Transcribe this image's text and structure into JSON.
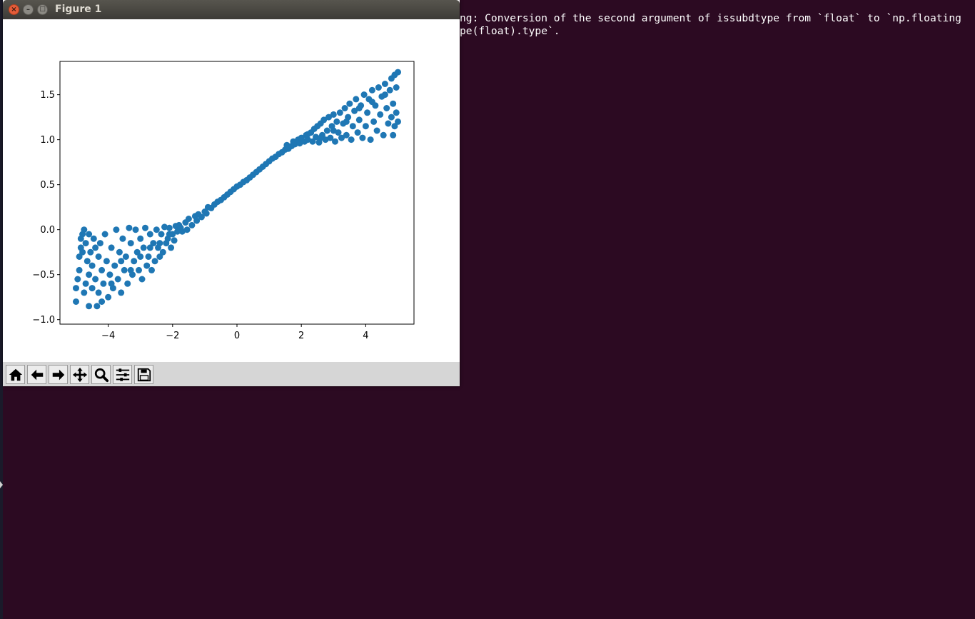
{
  "window": {
    "title": "Figure 1"
  },
  "terminal": {
    "lines": [
      "ng: Conversion of the second argument of issubdtype from `float` to `np.floating",
      "pe(float).type`."
    ]
  },
  "toolbar": {
    "buttons": [
      {
        "name": "home-button",
        "icon": "home-icon"
      },
      {
        "name": "back-button",
        "icon": "arrow-left-icon"
      },
      {
        "name": "forward-button",
        "icon": "arrow-right-icon"
      },
      {
        "name": "pan-button",
        "icon": "move-icon"
      },
      {
        "name": "zoom-button",
        "icon": "magnifier-icon"
      },
      {
        "name": "configure-subplots-button",
        "icon": "sliders-icon"
      },
      {
        "name": "save-button",
        "icon": "floppy-icon"
      }
    ]
  },
  "chart_data": {
    "type": "scatter",
    "xlim": [
      -5.5,
      5.5
    ],
    "ylim": [
      -1.05,
      1.87
    ],
    "xticks": [
      -4,
      -2,
      0,
      2,
      4
    ],
    "xtick_labels": [
      "−4",
      "−2",
      "0",
      "2",
      "4"
    ],
    "yticks": [
      -1.0,
      -0.5,
      0.0,
      0.5,
      1.0,
      1.5
    ],
    "ytick_labels": [
      "−1.0",
      "−0.5",
      "0.0",
      "0.5",
      "1.0",
      "1.5"
    ],
    "marker_color": "#1f77b4",
    "grid": false,
    "legend": "none",
    "points": [
      [
        -5.0,
        -0.8
      ],
      [
        -5.0,
        -0.65
      ],
      [
        -4.95,
        -0.55
      ],
      [
        -4.9,
        -0.45
      ],
      [
        -4.9,
        -0.3
      ],
      [
        -4.85,
        -0.1
      ],
      [
        -4.85,
        -0.2
      ],
      [
        -4.8,
        -0.05
      ],
      [
        -4.75,
        0.0
      ],
      [
        -4.75,
        -0.7
      ],
      [
        -4.7,
        -0.6
      ],
      [
        -4.7,
        -0.15
      ],
      [
        -4.65,
        -0.35
      ],
      [
        -4.6,
        -0.85
      ],
      [
        -4.6,
        -0.5
      ],
      [
        -4.55,
        -0.25
      ],
      [
        -4.5,
        -0.65
      ],
      [
        -4.5,
        -0.4
      ],
      [
        -4.45,
        -0.1
      ],
      [
        -4.4,
        -0.55
      ],
      [
        -4.35,
        -0.85
      ],
      [
        -4.3,
        -0.3
      ],
      [
        -4.3,
        -0.7
      ],
      [
        -4.25,
        -0.15
      ],
      [
        -4.2,
        -0.45
      ],
      [
        -4.15,
        -0.6
      ],
      [
        -4.1,
        -0.05
      ],
      [
        -4.05,
        -0.35
      ],
      [
        -4.0,
        -0.75
      ],
      [
        -3.95,
        -0.5
      ],
      [
        -3.9,
        -0.2
      ],
      [
        -3.85,
        -0.65
      ],
      [
        -3.8,
        -0.4
      ],
      [
        -3.75,
        0.0
      ],
      [
        -3.7,
        -0.55
      ],
      [
        -3.65,
        -0.25
      ],
      [
        -3.6,
        -0.7
      ],
      [
        -3.55,
        -0.1
      ],
      [
        -3.5,
        -0.45
      ],
      [
        -3.45,
        -0.3
      ],
      [
        -3.4,
        -0.6
      ],
      [
        -3.35,
        0.02
      ],
      [
        -3.3,
        -0.15
      ],
      [
        -3.25,
        -0.5
      ],
      [
        -3.2,
        -0.35
      ],
      [
        -3.15,
        0.0
      ],
      [
        -3.1,
        -0.25
      ],
      [
        -3.05,
        -0.45
      ],
      [
        -3.0,
        -0.1
      ],
      [
        -2.95,
        -0.55
      ],
      [
        -2.9,
        -0.2
      ],
      [
        -2.85,
        0.02
      ],
      [
        -2.8,
        -0.4
      ],
      [
        -2.75,
        -0.3
      ],
      [
        -2.7,
        -0.05
      ],
      [
        -2.65,
        -0.45
      ],
      [
        -2.6,
        -0.15
      ],
      [
        -2.55,
        -0.35
      ],
      [
        -2.5,
        0.0
      ],
      [
        -2.45,
        -0.2
      ],
      [
        -2.4,
        -0.3
      ],
      [
        -2.35,
        -0.05
      ],
      [
        -2.3,
        -0.25
      ],
      [
        -2.25,
        0.03
      ],
      [
        -2.2,
        -0.15
      ],
      [
        -2.15,
        -0.1
      ],
      [
        -2.1,
        0.02
      ],
      [
        -2.05,
        -0.2
      ],
      [
        -2.0,
        -0.05
      ],
      [
        -1.95,
        -0.12
      ],
      [
        -1.9,
        0.04
      ],
      [
        -1.85,
        -0.02
      ],
      [
        -1.8,
        0.05
      ],
      [
        -1.7,
        -0.02
      ],
      [
        -1.6,
        0.08
      ],
      [
        -1.55,
        0.0
      ],
      [
        -1.5,
        0.12
      ],
      [
        -1.4,
        0.05
      ],
      [
        -1.3,
        0.15
      ],
      [
        -1.25,
        0.1
      ],
      [
        -1.2,
        0.17
      ],
      [
        -1.1,
        0.14
      ],
      [
        -1.0,
        0.2
      ],
      [
        -0.95,
        0.18
      ],
      [
        -0.9,
        0.25
      ],
      [
        -0.8,
        0.24
      ],
      [
        -0.7,
        0.28
      ],
      [
        -0.6,
        0.31
      ],
      [
        -0.5,
        0.33
      ],
      [
        -0.4,
        0.36
      ],
      [
        -0.3,
        0.39
      ],
      [
        -0.2,
        0.42
      ],
      [
        -0.1,
        0.45
      ],
      [
        0.0,
        0.48
      ],
      [
        0.1,
        0.5
      ],
      [
        0.2,
        0.53
      ],
      [
        0.3,
        0.55
      ],
      [
        0.4,
        0.58
      ],
      [
        0.5,
        0.61
      ],
      [
        0.6,
        0.64
      ],
      [
        0.7,
        0.67
      ],
      [
        0.8,
        0.7
      ],
      [
        0.9,
        0.73
      ],
      [
        1.0,
        0.76
      ],
      [
        1.1,
        0.79
      ],
      [
        1.2,
        0.81
      ],
      [
        1.3,
        0.84
      ],
      [
        1.4,
        0.86
      ],
      [
        1.5,
        0.89
      ],
      [
        1.55,
        0.94
      ],
      [
        1.6,
        0.9
      ],
      [
        1.7,
        0.93
      ],
      [
        1.75,
        0.98
      ],
      [
        1.8,
        0.95
      ],
      [
        1.9,
        1.0
      ],
      [
        1.95,
        0.96
      ],
      [
        2.0,
        1.02
      ],
      [
        2.1,
        0.98
      ],
      [
        2.15,
        1.05
      ],
      [
        2.2,
        1.0
      ],
      [
        2.3,
        1.08
      ],
      [
        2.35,
        0.98
      ],
      [
        2.4,
        1.12
      ],
      [
        2.45,
        1.03
      ],
      [
        2.5,
        1.15
      ],
      [
        2.55,
        0.97
      ],
      [
        2.6,
        1.18
      ],
      [
        2.65,
        1.05
      ],
      [
        2.7,
        1.22
      ],
      [
        2.75,
        1.0
      ],
      [
        2.8,
        1.1
      ],
      [
        2.85,
        1.25
      ],
      [
        2.9,
        1.02
      ],
      [
        2.95,
        1.15
      ],
      [
        3.0,
        1.28
      ],
      [
        3.05,
        0.98
      ],
      [
        3.1,
        1.2
      ],
      [
        3.15,
        1.08
      ],
      [
        3.2,
        1.3
      ],
      [
        3.25,
        1.02
      ],
      [
        3.3,
        1.18
      ],
      [
        3.35,
        1.35
      ],
      [
        3.4,
        1.05
      ],
      [
        3.45,
        1.25
      ],
      [
        3.5,
        1.4
      ],
      [
        3.55,
        1.0
      ],
      [
        3.6,
        1.15
      ],
      [
        3.65,
        1.32
      ],
      [
        3.7,
        1.45
      ],
      [
        3.75,
        1.08
      ],
      [
        3.8,
        1.22
      ],
      [
        3.85,
        1.38
      ],
      [
        3.9,
        1.02
      ],
      [
        3.95,
        1.5
      ],
      [
        4.0,
        1.15
      ],
      [
        4.05,
        1.3
      ],
      [
        4.1,
        1.45
      ],
      [
        4.15,
        1.0
      ],
      [
        4.2,
        1.55
      ],
      [
        4.25,
        1.2
      ],
      [
        4.3,
        1.38
      ],
      [
        4.35,
        1.1
      ],
      [
        4.4,
        1.58
      ],
      [
        4.45,
        1.28
      ],
      [
        4.5,
        1.48
      ],
      [
        4.55,
        1.05
      ],
      [
        4.6,
        1.62
      ],
      [
        4.65,
        1.35
      ],
      [
        4.7,
        1.18
      ],
      [
        4.75,
        1.55
      ],
      [
        4.8,
        1.68
      ],
      [
        4.8,
        1.25
      ],
      [
        4.85,
        1.05
      ],
      [
        4.85,
        1.4
      ],
      [
        4.9,
        1.72
      ],
      [
        4.9,
        1.15
      ],
      [
        4.95,
        1.58
      ],
      [
        4.95,
        1.3
      ],
      [
        5.0,
        1.75
      ],
      [
        5.0,
        1.2
      ],
      [
        -4.8,
        -0.25
      ],
      [
        -4.6,
        -0.05
      ],
      [
        -4.4,
        -0.2
      ],
      [
        -4.2,
        -0.8
      ],
      [
        -3.9,
        -0.6
      ],
      [
        -3.6,
        -0.35
      ],
      [
        -3.3,
        -0.45
      ],
      [
        -3.0,
        -0.3
      ],
      [
        -2.7,
        -0.2
      ],
      [
        -2.4,
        -0.15
      ],
      [
        -2.1,
        -0.05
      ],
      [
        -1.75,
        0.02
      ],
      [
        2.2,
        1.06
      ],
      [
        2.6,
        1.02
      ],
      [
        3.0,
        1.1
      ],
      [
        3.4,
        1.2
      ],
      [
        3.8,
        1.35
      ],
      [
        4.2,
        1.42
      ],
      [
        4.6,
        1.5
      ]
    ]
  }
}
